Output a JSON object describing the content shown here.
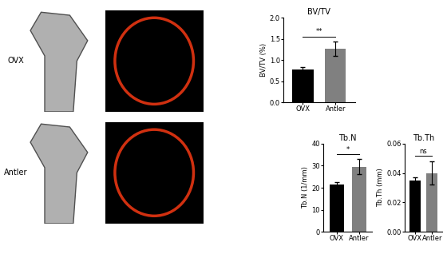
{
  "row_labels": [
    "OVX",
    "Antler"
  ],
  "chart_data": [
    {
      "type": "bar",
      "title": "BV/TV",
      "y_label": "BV/TV (%)",
      "categories": [
        "OVX",
        "Antler"
      ],
      "values": [
        0.78,
        1.27
      ],
      "errors": [
        0.05,
        0.17
      ],
      "colors": [
        "#000000",
        "#808080"
      ],
      "ylim": [
        0,
        2.0
      ],
      "yticks": [
        {
          "value": 0,
          "label": "0.0"
        },
        {
          "value": 0.5,
          "label": "0.5"
        },
        {
          "value": 1.0,
          "label": "1.0"
        },
        {
          "value": 1.5,
          "label": "1.5"
        },
        {
          "value": 2.0,
          "label": "2.0"
        }
      ],
      "annotation": "**"
    },
    {
      "type": "bar",
      "title": "Tb.N",
      "y_label": "Tb.N (1/mm)",
      "categories": [
        "OVX",
        "Antler"
      ],
      "values": [
        21.5,
        29.5
      ],
      "errors": [
        1.0,
        3.5
      ],
      "colors": [
        "#000000",
        "#808080"
      ],
      "ylim": [
        0,
        40
      ],
      "yticks": [
        0,
        10,
        20,
        30,
        40
      ],
      "annotation": "*"
    },
    {
      "type": "bar",
      "title": "Tb.Th",
      "y_label": "Tb.Th (mm)",
      "categories": [
        "OVX",
        "Antler"
      ],
      "values": [
        0.035,
        0.04
      ],
      "errors": [
        0.002,
        0.008
      ],
      "colors": [
        "#000000",
        "#808080"
      ],
      "ylim": [
        0,
        0.06
      ],
      "yticks": [
        {
          "value": 0,
          "label": "0.00"
        },
        {
          "value": 0.02,
          "label": "0.02"
        },
        {
          "value": 0.04,
          "label": "0.04"
        },
        {
          "value": 0.06,
          "label": "0.06"
        }
      ],
      "annotation": "ns"
    }
  ]
}
